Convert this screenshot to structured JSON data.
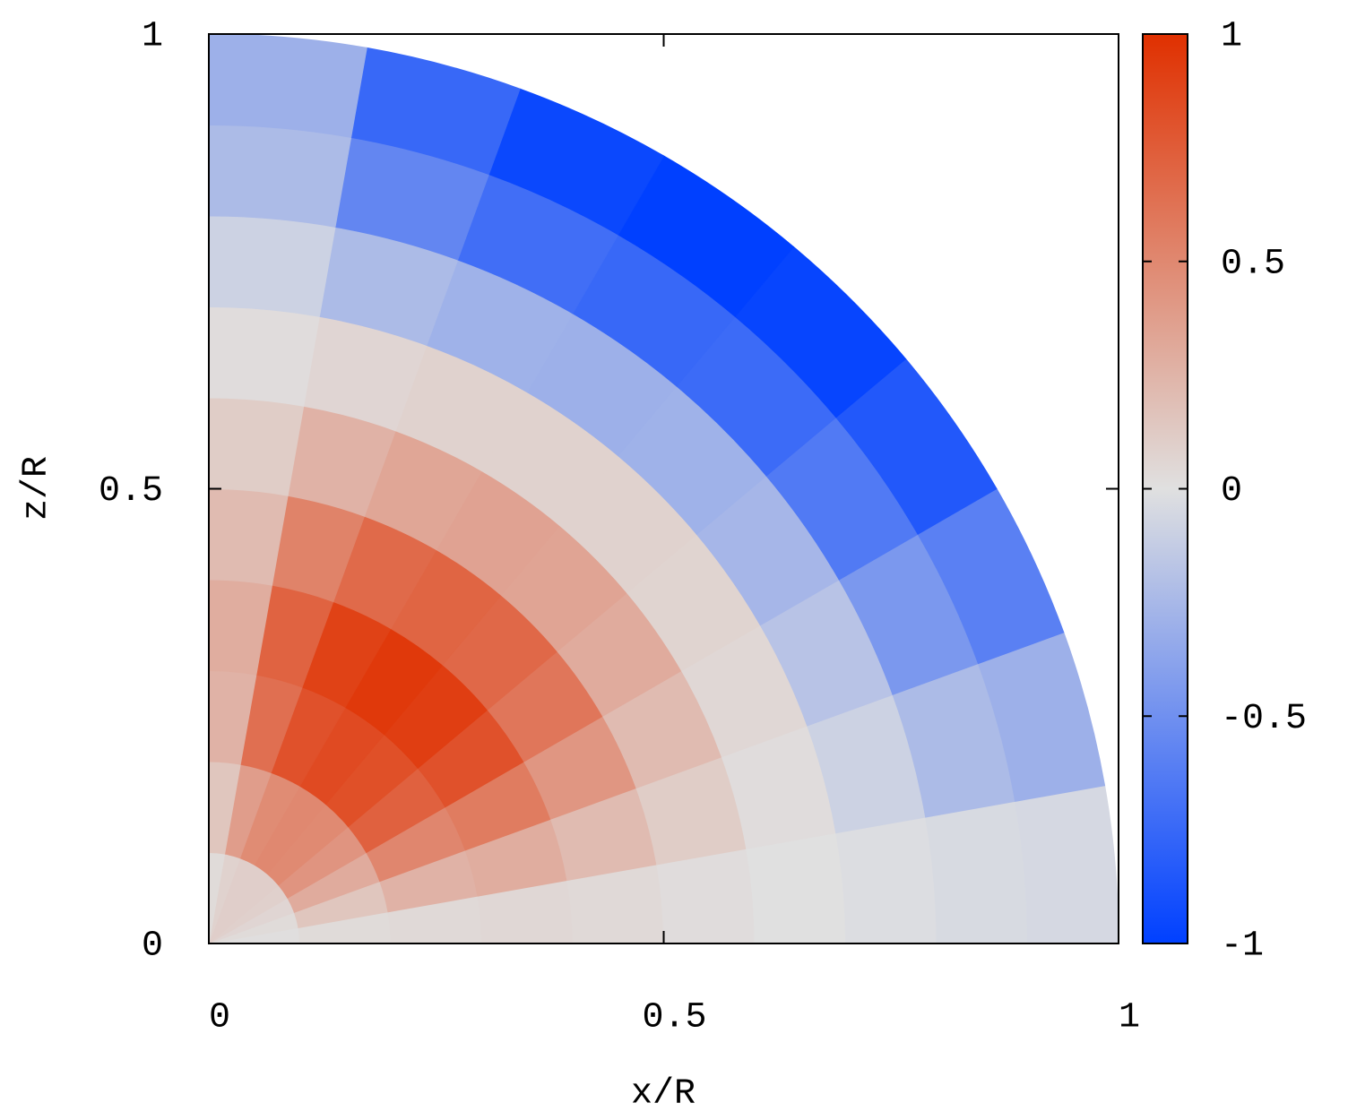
{
  "chart_data": {
    "type": "heatmap",
    "projection": "polar",
    "xlabel": "x/R",
    "ylabel": "z/R",
    "xlim": [
      0,
      1
    ],
    "ylim": [
      0,
      1
    ],
    "xticks": [
      0,
      0.5,
      1
    ],
    "yticks": [
      0,
      0.5,
      1
    ],
    "r_edges": [
      0,
      0.1,
      0.2,
      0.3,
      0.4,
      0.5,
      0.6,
      0.7,
      0.8,
      0.9,
      1
    ],
    "theta_edges": [
      0,
      10,
      20,
      30,
      40,
      50,
      60,
      70,
      80,
      90
    ],
    "values": [
      [
        0.01,
        0.03,
        0.06,
        0.09,
        0.1,
        0.1,
        0.1,
        0.08,
        0.03
      ],
      [
        0.03,
        0.15,
        0.3,
        0.43,
        0.49,
        0.5,
        0.48,
        0.38,
        0.15
      ],
      [
        0.04,
        0.26,
        0.51,
        0.72,
        0.82,
        0.85,
        0.81,
        0.64,
        0.26
      ],
      [
        0.05,
        0.29,
        0.57,
        0.81,
        0.92,
        0.95,
        0.9,
        0.71,
        0.29
      ],
      [
        0.04,
        0.21,
        0.42,
        0.6,
        0.68,
        0.7,
        0.67,
        0.53,
        0.21
      ],
      [
        0.02,
        0.11,
        0.21,
        0.3,
        0.34,
        0.35,
        0.33,
        0.26,
        0.11
      ],
      [
        0,
        0.02,
        0.05,
        0.07,
        0.08,
        0.08,
        0.08,
        0.06,
        0.02
      ],
      [
        -0.02,
        -0.09,
        -0.18,
        -0.26,
        -0.29,
        -0.3,
        -0.29,
        -0.23,
        -0.09
      ],
      [
        -0.04,
        -0.23,
        -0.45,
        -0.64,
        -0.73,
        -0.75,
        -0.71,
        -0.56,
        -0.23
      ],
      [
        -0.05,
        -0.3,
        -0.6,
        -0.85,
        -0.97,
        -1,
        -0.95,
        -0.75,
        -0.3
      ]
    ],
    "colormap": [
      "#0040ff",
      "#e0e0e0",
      "#e03000"
    ],
    "clim": [
      -1,
      1
    ],
    "cticks": [
      -1,
      -0.5,
      0,
      0.5,
      1
    ]
  }
}
